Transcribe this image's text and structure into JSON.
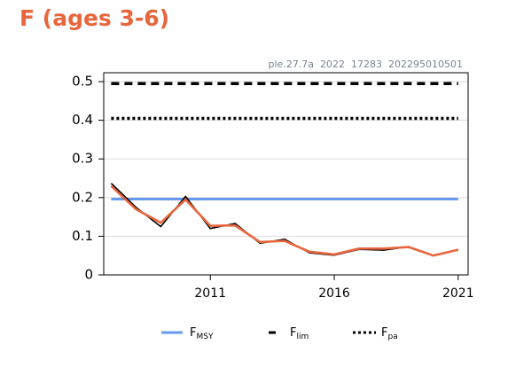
{
  "chart_data": {
    "type": "line",
    "title": "F (ages 3-6)",
    "subtitle": "ple.27.7a  2022  17283  202295010501",
    "x": [
      2007,
      2008,
      2009,
      2010,
      2011,
      2012,
      2013,
      2014,
      2015,
      2016,
      2017,
      2018,
      2019,
      2020,
      2021
    ],
    "series": [
      {
        "color": "#000000",
        "values": [
          0.237,
          0.175,
          0.125,
          0.203,
          0.12,
          0.133,
          0.082,
          0.092,
          0.057,
          0.051,
          0.066,
          0.064,
          0.073,
          0.05,
          0.065
        ]
      },
      {
        "color": "#e8663d",
        "values": [
          0.23,
          0.17,
          0.135,
          0.195,
          0.127,
          0.128,
          0.085,
          0.088,
          0.06,
          0.053,
          0.068,
          0.068,
          0.072,
          0.05,
          0.065
        ]
      }
    ],
    "reference_lines": [
      {
        "label": "F",
        "label_sub": "MSY",
        "value": 0.196,
        "color": "#6699ee",
        "style": "solid"
      },
      {
        "label": "F",
        "label_sub": "lim",
        "value": 0.495,
        "color": "#000000",
        "style": "dashed"
      },
      {
        "label": "F",
        "label_sub": "pa",
        "value": 0.405,
        "color": "#000000",
        "style": "dotted"
      }
    ],
    "xlim": [
      2006.7,
      2021.4
    ],
    "xticks": [
      2011,
      2016,
      2021
    ],
    "ylim": [
      0,
      0.523
    ],
    "yticks": [
      0,
      0.1,
      0.2,
      0.3,
      0.4,
      0.5
    ],
    "grid": true,
    "legend": "bottom"
  }
}
